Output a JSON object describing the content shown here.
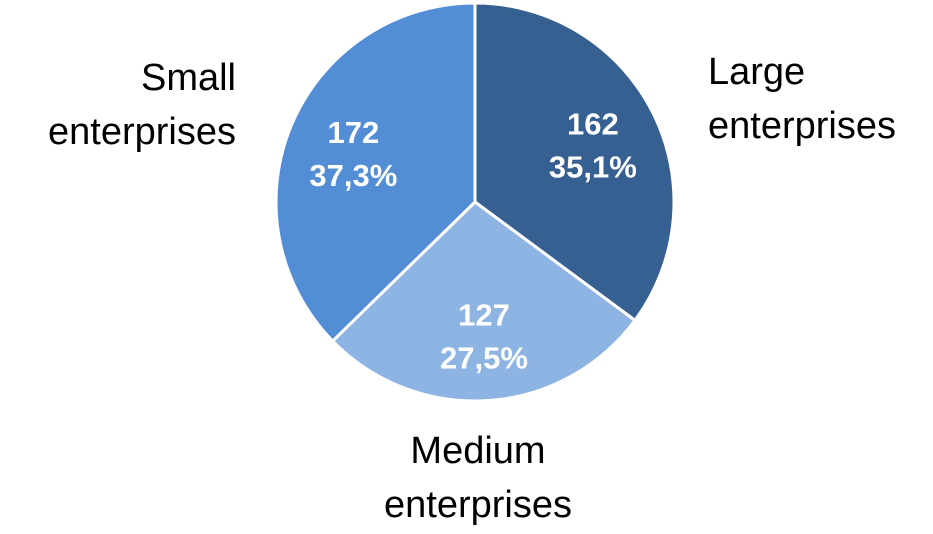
{
  "chart_data": {
    "type": "pie",
    "title": "",
    "slices": [
      {
        "name": "Large enterprises",
        "name_lines": [
          "Large",
          "enterprises"
        ],
        "value": 162,
        "value_label": "162",
        "percent_label": "35,1%",
        "color": "#366092"
      },
      {
        "name": "Medium enterprises",
        "name_lines": [
          "Medium",
          "enterprises"
        ],
        "value": 127,
        "value_label": "127",
        "percent_label": "27,5%",
        "color": "#8DB4E2"
      },
      {
        "name": "Small enterprises",
        "name_lines": [
          "Small",
          "enterprises"
        ],
        "value": 172,
        "value_label": "172",
        "percent_label": "37,3%",
        "color": "#538DD5"
      }
    ],
    "start": "12 o'clock",
    "direction": "clockwise",
    "legend": "none"
  }
}
